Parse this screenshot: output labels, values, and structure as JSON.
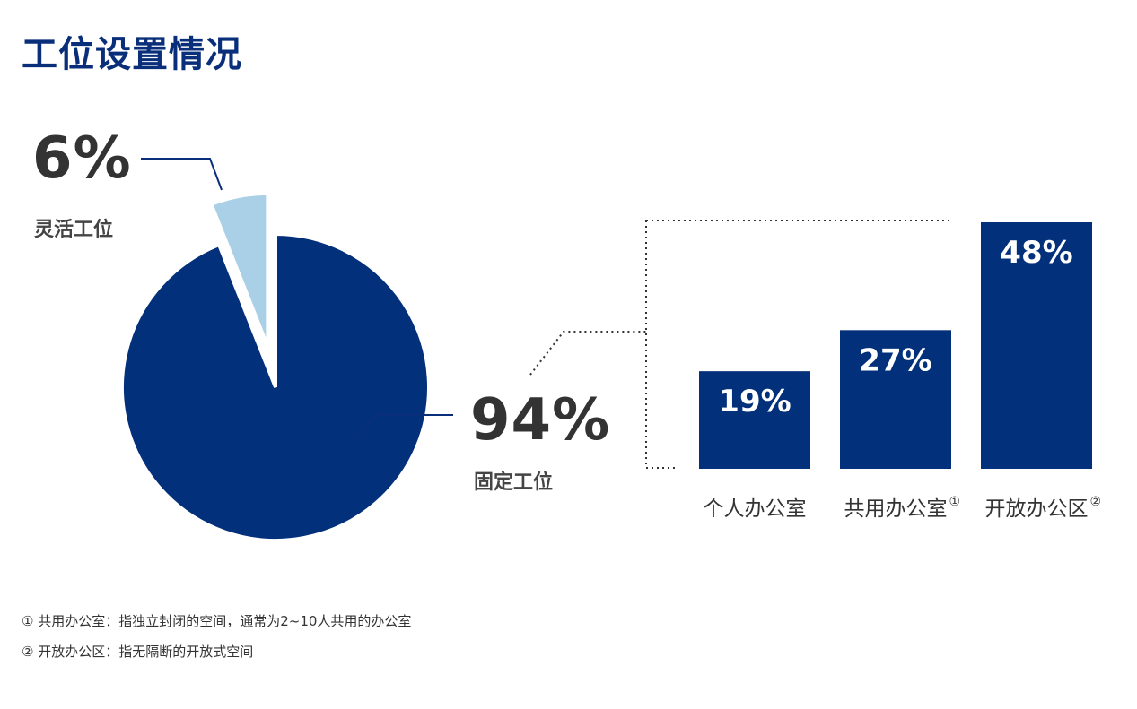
{
  "title": "工位设置情况",
  "chart_data": [
    {
      "type": "pie",
      "slices": [
        {
          "label": "灵活工位",
          "value": 6,
          "display": "6%",
          "color": "#a9d0e6"
        },
        {
          "label": "固定工位",
          "value": 94,
          "display": "94%",
          "color": "#03307b"
        }
      ]
    },
    {
      "type": "bar",
      "categories": [
        "个人办公室",
        "共用办公室",
        "开放办公区"
      ],
      "category_marks": [
        "",
        "①",
        "②"
      ],
      "values": [
        19,
        27,
        48
      ],
      "value_labels": [
        "19%",
        "27%",
        "48%"
      ],
      "color": "#03307b"
    }
  ],
  "footnotes": [
    "① 共用办公室：指独立封闭的空间，通常为2~10人共用的办公室",
    "② 开放办公区：指无隔断的开放式空间"
  ],
  "colors": {
    "title": "#0a2f7a",
    "primary": "#03307b",
    "light": "#a9d0e6",
    "text": "#333333"
  }
}
